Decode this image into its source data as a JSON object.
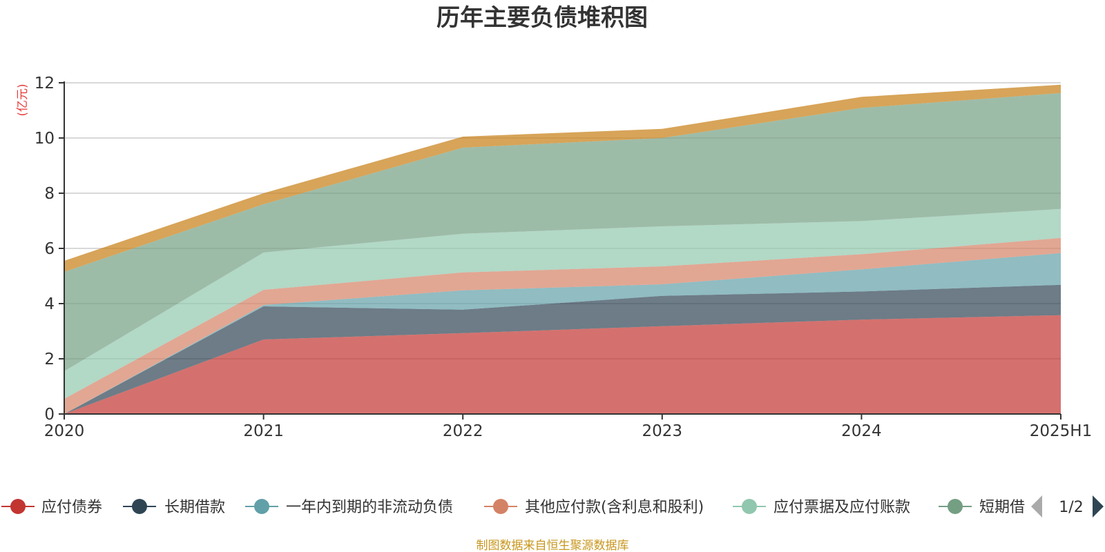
{
  "chart_data": {
    "type": "area",
    "stacked": true,
    "title": "历年主要负债堆积图",
    "ylabel": "(亿元)",
    "xlabel": "",
    "x": [
      "2020",
      "2021",
      "2022",
      "2023",
      "2024",
      "2025H1"
    ],
    "ylim": [
      0,
      12
    ],
    "yticks": [
      0,
      2,
      4,
      6,
      8,
      10,
      12
    ],
    "grid": true,
    "legend_position": "bottom",
    "series": [
      {
        "name": "应付债券",
        "color": "#c23531",
        "values": [
          0,
          2.7,
          2.93,
          3.18,
          3.42,
          3.58
        ]
      },
      {
        "name": "长期借款",
        "color": "#2f4554",
        "values": [
          0,
          1.2,
          0.85,
          1.1,
          1.02,
          1.1
        ]
      },
      {
        "name": "一年内到期的非流动负债",
        "color": "#61a0a8",
        "values": [
          0,
          0.05,
          0.7,
          0.42,
          0.8,
          1.15
        ]
      },
      {
        "name": "其他应付款(含利息和股利)",
        "color": "#d48265",
        "values": [
          0.55,
          0.55,
          0.65,
          0.65,
          0.55,
          0.55
        ]
      },
      {
        "name": "应付票据及应付账款",
        "color": "#91c7ae",
        "values": [
          1.0,
          1.35,
          1.4,
          1.45,
          1.2,
          1.05
        ]
      },
      {
        "name": "短期借款",
        "color": "#749f83",
        "values": [
          3.6,
          1.75,
          3.12,
          3.2,
          4.1,
          4.2
        ]
      },
      {
        "name": "",
        "color": "#ca8622",
        "values": [
          0.4,
          0.4,
          0.4,
          0.33,
          0.4,
          0.3
        ]
      }
    ]
  },
  "legend": {
    "page": "1/2",
    "visible_items": [
      "应付债券",
      "长期借款",
      "一年内到期的非流动负债",
      "其他应付款(含利息和股利)",
      "应付票据及应付账款",
      "短期借"
    ]
  },
  "source_note": "制图数据来自恒生聚源数据库"
}
